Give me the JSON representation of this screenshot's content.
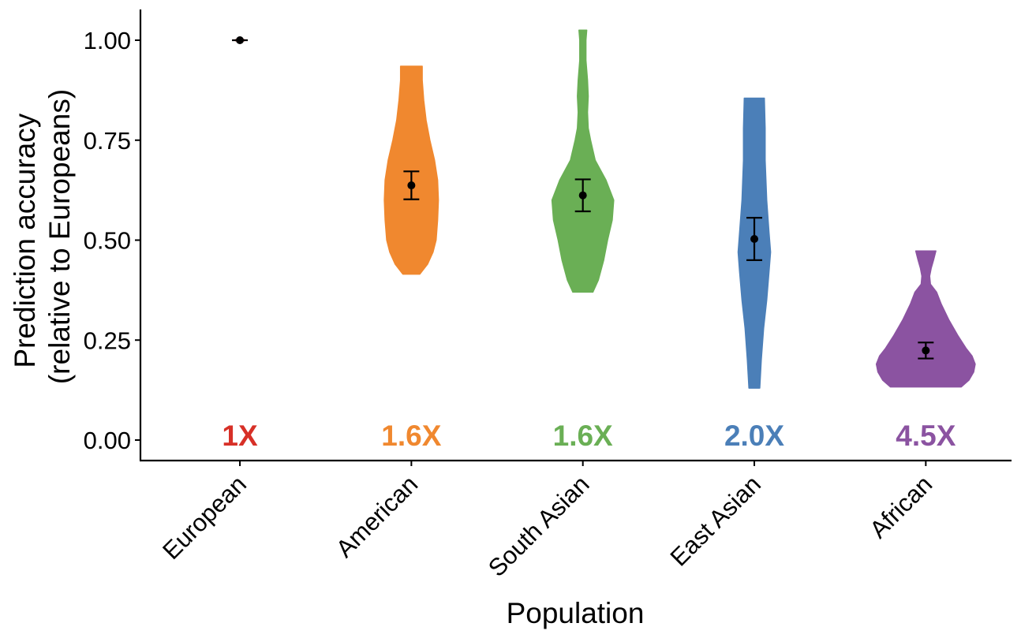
{
  "chart_data": {
    "type": "violin",
    "title": "",
    "xlabel": "Population",
    "ylabel_lines": [
      "Prediction accuracy",
      "(relative to Europeans)"
    ],
    "ylim": [
      -0.05,
      1.075
    ],
    "y_ticks": [
      0.0,
      0.25,
      0.5,
      0.75,
      1.0
    ],
    "y_tick_labels": [
      "0.00",
      "0.25",
      "0.50",
      "0.75",
      "1.00"
    ],
    "grid": false,
    "legend": "none",
    "categories": [
      "European",
      "American",
      "South Asian",
      "East Asian",
      "African"
    ],
    "groups": [
      {
        "name": "European",
        "color": "#d73027",
        "fold_label": "1X",
        "mean": 1.0,
        "ci_low": 1.0,
        "ci_high": 1.0,
        "violin_range": [
          1.0,
          1.0
        ],
        "violin_profile": [
          [
            1.0,
            0.06
          ]
        ]
      },
      {
        "name": "American",
        "color": "#f0882f",
        "fold_label": "1.6X",
        "mean": 0.637,
        "ci_low": 0.602,
        "ci_high": 0.672,
        "violin_range": [
          0.415,
          0.935
        ],
        "violin_profile": [
          [
            0.415,
            0.11
          ],
          [
            0.44,
            0.21
          ],
          [
            0.47,
            0.28
          ],
          [
            0.5,
            0.32
          ],
          [
            0.55,
            0.34
          ],
          [
            0.6,
            0.35
          ],
          [
            0.65,
            0.34
          ],
          [
            0.7,
            0.3
          ],
          [
            0.75,
            0.24
          ],
          [
            0.8,
            0.19
          ],
          [
            0.85,
            0.16
          ],
          [
            0.9,
            0.14
          ],
          [
            0.935,
            0.14
          ]
        ]
      },
      {
        "name": "South Asian",
        "color": "#6aaf55",
        "fold_label": "1.6X",
        "mean": 0.612,
        "ci_low": 0.572,
        "ci_high": 0.652,
        "violin_range": [
          0.37,
          1.025
        ],
        "violin_profile": [
          [
            0.37,
            0.13
          ],
          [
            0.4,
            0.2
          ],
          [
            0.45,
            0.27
          ],
          [
            0.5,
            0.32
          ],
          [
            0.55,
            0.38
          ],
          [
            0.6,
            0.4
          ],
          [
            0.65,
            0.3
          ],
          [
            0.7,
            0.16
          ],
          [
            0.75,
            0.1
          ],
          [
            0.78,
            0.07
          ],
          [
            0.82,
            0.06
          ],
          [
            0.86,
            0.07
          ],
          [
            0.9,
            0.06
          ],
          [
            0.95,
            0.04
          ],
          [
            1.0,
            0.04
          ],
          [
            1.025,
            0.05
          ]
        ]
      },
      {
        "name": "East Asian",
        "color": "#4b7fb8",
        "fold_label": "2.0X",
        "mean": 0.503,
        "ci_low": 0.45,
        "ci_high": 0.556,
        "violin_range": [
          0.13,
          0.855
        ],
        "violin_profile": [
          [
            0.13,
            0.07
          ],
          [
            0.2,
            0.09
          ],
          [
            0.28,
            0.12
          ],
          [
            0.35,
            0.16
          ],
          [
            0.42,
            0.19
          ],
          [
            0.47,
            0.21
          ],
          [
            0.52,
            0.19
          ],
          [
            0.6,
            0.16
          ],
          [
            0.7,
            0.14
          ],
          [
            0.78,
            0.14
          ],
          [
            0.855,
            0.13
          ]
        ]
      },
      {
        "name": "African",
        "color": "#8b53a1",
        "fold_label": "4.5X",
        "mean": 0.224,
        "ci_low": 0.204,
        "ci_high": 0.244,
        "violin_range": [
          0.133,
          0.473
        ],
        "violin_profile": [
          [
            0.133,
            0.46
          ],
          [
            0.15,
            0.56
          ],
          [
            0.17,
            0.62
          ],
          [
            0.19,
            0.64
          ],
          [
            0.21,
            0.6
          ],
          [
            0.23,
            0.52
          ],
          [
            0.26,
            0.42
          ],
          [
            0.3,
            0.3
          ],
          [
            0.34,
            0.2
          ],
          [
            0.37,
            0.14
          ],
          [
            0.39,
            0.06
          ],
          [
            0.41,
            0.05
          ],
          [
            0.43,
            0.07
          ],
          [
            0.45,
            0.1
          ],
          [
            0.473,
            0.13
          ]
        ]
      }
    ]
  }
}
